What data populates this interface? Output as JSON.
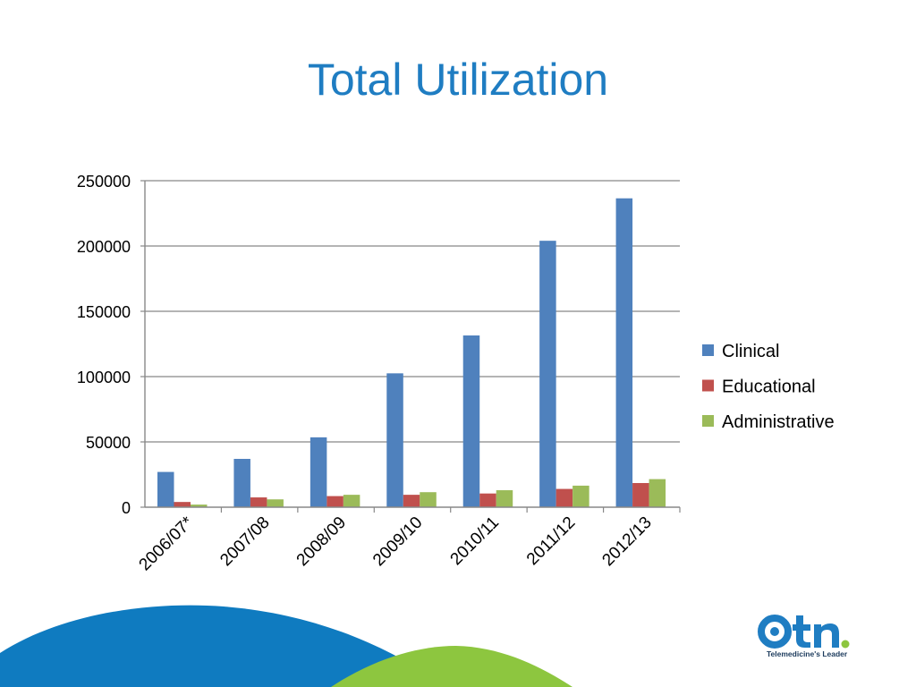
{
  "slide": {
    "title": "Total Utilization"
  },
  "logo": {
    "wordmark": "otn",
    "tagline": "Telemedicine's Leader"
  },
  "colors": {
    "title": "#1f7dc2",
    "clinical": "#4f81bd",
    "educational": "#c0504d",
    "administrative": "#9bbb59",
    "decor_blue": "#0f7bc0",
    "decor_green": "#8dc63f",
    "logo_blue": "#1f7dc2",
    "logo_green": "#8dc63f"
  },
  "chart_data": {
    "type": "bar",
    "title": "",
    "xlabel": "",
    "ylabel": "",
    "categories": [
      "2006/07*",
      "2007/08",
      "2008/09",
      "2009/10",
      "2010/11",
      "2011/12",
      "2012/13"
    ],
    "series": [
      {
        "name": "Clinical",
        "color": "#4f81bd",
        "values": [
          27000,
          37000,
          53500,
          102500,
          131500,
          204000,
          236500
        ]
      },
      {
        "name": "Educational",
        "color": "#c0504d",
        "values": [
          4000,
          7500,
          8500,
          9500,
          10500,
          14000,
          18500
        ]
      },
      {
        "name": "Administrative",
        "color": "#9bbb59",
        "values": [
          2000,
          6000,
          9500,
          11500,
          13000,
          16500,
          21500
        ]
      }
    ],
    "ylim": [
      0,
      250000
    ],
    "yticks": [
      "0",
      "50000",
      "100000",
      "150000",
      "200000",
      "250000"
    ],
    "ytick_values": [
      0,
      50000,
      100000,
      150000,
      200000,
      250000
    ],
    "grid": true,
    "legend": "right"
  }
}
